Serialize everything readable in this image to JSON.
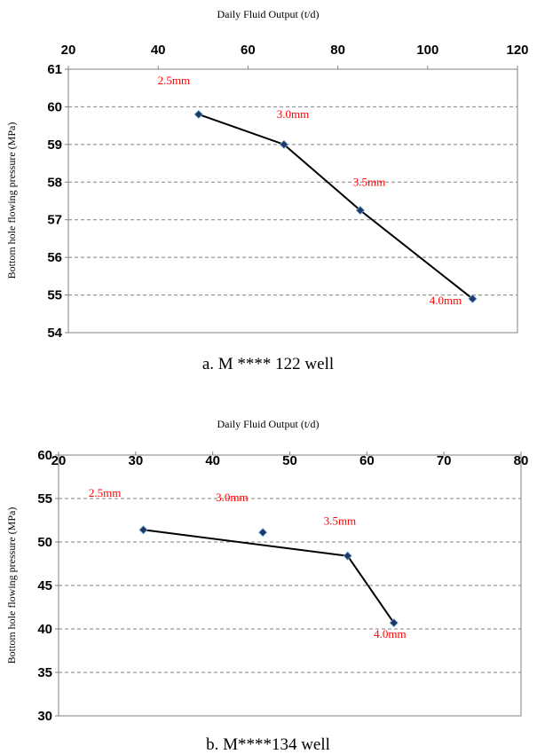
{
  "chart_data": [
    {
      "type": "line",
      "xlabel": "Daily Fluid Output (t/d)",
      "ylabel": "Bottom hole flowing pressure (MPa)",
      "caption": "a. M **** 122 well",
      "xlim": [
        20,
        120
      ],
      "ylim": [
        54,
        61
      ],
      "xticks": [
        "20",
        "40",
        "60",
        "80",
        "100",
        "120"
      ],
      "yticks": [
        "54",
        "55",
        "56",
        "57",
        "58",
        "59",
        "60",
        "61"
      ],
      "grid": "horizontal dashed",
      "series": [
        {
          "x": [
            49,
            68,
            85,
            110
          ],
          "y": [
            59.8,
            59.0,
            57.25,
            54.9
          ]
        }
      ],
      "line_points": [
        0,
        1,
        2,
        3
      ],
      "labels": [
        {
          "text": "2.5mm",
          "x": 43.5,
          "y": 60.6
        },
        {
          "text": "3.0mm",
          "x": 70,
          "y": 59.7
        },
        {
          "text": "3.5mm",
          "x": 87,
          "y": 57.9
        },
        {
          "text": "4.0mm",
          "x": 104,
          "y": 54.75
        }
      ],
      "colors": {
        "line": "#000000",
        "marker": "#1f3864",
        "label": "#ff0000",
        "grid": "#808080"
      }
    },
    {
      "type": "line",
      "xlabel": "Daily Fluid Output (t/d)",
      "ylabel": "Bottom hole flowing pressure (MPa)",
      "caption": "b. M****134 well",
      "xlim": [
        20,
        80
      ],
      "ylim": [
        30,
        60
      ],
      "xticks": [
        "20",
        "30",
        "40",
        "50",
        "60",
        "70",
        "80"
      ],
      "yticks": [
        "30",
        "35",
        "40",
        "45",
        "50",
        "55",
        "60"
      ],
      "grid": "horizontal dashed",
      "series": [
        {
          "x": [
            31,
            46.5,
            57.5,
            63.5
          ],
          "y": [
            51.4,
            51.1,
            48.4,
            40.7
          ]
        }
      ],
      "line_points": [
        0,
        2,
        3
      ],
      "labels": [
        {
          "text": "2.5mm",
          "x": 26,
          "y": 55.2
        },
        {
          "text": "3.0mm",
          "x": 42.5,
          "y": 54.7
        },
        {
          "text": "3.5mm",
          "x": 56.5,
          "y": 52.0
        },
        {
          "text": "4.0mm",
          "x": 63,
          "y": 39.0
        }
      ],
      "colors": {
        "line": "#000000",
        "marker": "#1f3864",
        "label": "#ff0000",
        "grid": "#808080"
      }
    }
  ]
}
